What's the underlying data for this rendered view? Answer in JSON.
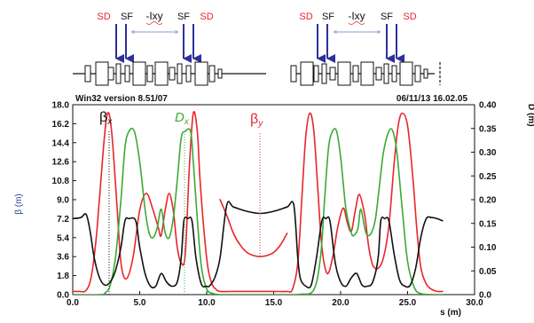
{
  "header": {
    "version": "Win32 version 8.51/07",
    "datetime": "06/11/13  16.02.05"
  },
  "colors": {
    "beta_x": "#e8252c",
    "beta_y": "#e8252c",
    "dispersion": "#3aaa35",
    "black_curve": "#111111",
    "annotation_red": "#e8252c",
    "arrow_blue": "#2c2f9c",
    "axis_label_blue": "#1f3d9a"
  },
  "lattice_labels": {
    "left": {
      "sd1": "SD",
      "sf1": "SF",
      "ixy": "-Ixy",
      "sf2": "SF",
      "sd2": "SD"
    },
    "right": {
      "sd1": "SD",
      "sf1": "SF",
      "ixy": "-Ixy",
      "sf2": "SF",
      "sd2": "SD"
    }
  },
  "chart_data": {
    "type": "line",
    "xlabel": "s (m)",
    "ylabel_left": "β (m)",
    "ylabel_right": "D (m)",
    "xlim": [
      0,
      30
    ],
    "ylim_left": [
      0,
      18
    ],
    "ylim_right": [
      0,
      0.4
    ],
    "x_ticks": [
      "0.0",
      "5.0",
      "10.0",
      "15.0",
      "20.0",
      "25.0",
      "30.0"
    ],
    "y_left_ticks": [
      "0.0",
      "1.8",
      "3.6",
      "5.4",
      "7.2",
      "9.0",
      "10.8",
      "12.6",
      "14.4",
      "16.2",
      "18.0"
    ],
    "y_right_ticks": [
      "0.0",
      "0.05",
      "0.10",
      "0.15",
      "0.20",
      "0.25",
      "0.30",
      "0.35",
      "0.40"
    ],
    "annotations": {
      "beta_x": "βx",
      "dispersion": "Dx",
      "beta_y": "βy"
    },
    "series": [
      {
        "key": "beta_x",
        "axis": "left",
        "x": [
          0.0,
          0.5,
          1.0,
          1.4,
          1.8,
          2.3,
          2.6,
          2.9,
          3.3,
          3.6,
          4.0,
          4.5,
          5.0,
          5.5,
          6.0,
          6.4,
          6.6,
          6.9,
          7.2,
          7.5,
          7.8,
          8.1,
          8.4,
          8.7,
          9.0,
          9.3,
          9.5,
          9.8,
          10.1,
          10.4,
          10.7,
          11.0,
          12.0,
          13.0,
          14.0,
          15.0,
          16.0,
          16.4,
          16.8,
          17.1,
          17.4,
          17.7,
          18.0,
          18.3,
          18.6,
          19.0,
          19.4,
          19.8,
          20.2,
          20.5,
          20.8,
          21.1,
          21.4,
          21.8,
          22.1,
          22.4,
          22.8,
          23.2,
          23.6,
          24.0,
          24.3,
          24.6,
          25.0,
          25.4,
          25.7,
          26.0,
          26.4,
          26.8,
          27.2,
          27.6
        ],
        "y": [
          0.3,
          0.3,
          0.4,
          1.8,
          6.0,
          14.0,
          17.2,
          15.5,
          8.5,
          3.0,
          1.5,
          3.5,
          8.0,
          9.6,
          8.0,
          6.3,
          5.6,
          8.0,
          9.6,
          8.0,
          4.5,
          3.0,
          3.8,
          12.0,
          17.2,
          15.5,
          11.0,
          6.0,
          2.5,
          1.0,
          0.5,
          0.3,
          0.3,
          0.3,
          0.3,
          0.3,
          0.3,
          0.5,
          3.0,
          9.0,
          15.0,
          17.2,
          15.5,
          10.0,
          4.5,
          2.0,
          3.5,
          6.5,
          8.2,
          6.8,
          6.0,
          8.0,
          9.5,
          7.5,
          4.5,
          2.8,
          2.5,
          3.5,
          6.5,
          12.5,
          16.0,
          17.2,
          16.0,
          11.0,
          6.0,
          2.5,
          1.0,
          0.5,
          0.3,
          0.3
        ]
      },
      {
        "key": "beta_y",
        "axis": "left",
        "x": [
          16.0,
          15.5,
          15.0,
          14.5,
          14.0,
          13.5,
          13.0,
          12.5,
          12.0,
          11.5,
          11.0
        ],
        "y": [
          5.8,
          4.7,
          4.0,
          3.7,
          3.6,
          3.7,
          4.0,
          4.7,
          5.8,
          7.5,
          9.0
        ]
      },
      {
        "key": "dispersion",
        "axis": "right",
        "x": [
          0.0,
          2.0,
          2.4,
          2.8,
          3.2,
          3.6,
          3.9,
          4.2,
          4.6,
          5.0,
          5.4,
          5.7,
          6.0,
          6.3,
          6.6,
          6.9,
          7.2,
          7.5,
          7.8,
          8.1,
          8.4,
          8.8,
          9.0,
          9.3,
          9.6,
          10.0,
          10.5,
          11.0,
          12.0,
          13.0,
          14.0,
          15.0,
          16.0,
          17.0,
          18.0,
          18.5,
          18.8,
          19.1,
          19.4,
          19.7,
          20.0,
          20.4,
          20.8,
          21.0,
          21.3,
          21.5,
          21.8,
          22.0,
          22.3,
          22.6,
          22.9,
          23.2,
          23.6,
          23.9,
          24.2,
          24.6,
          25.0,
          25.5,
          26.0,
          27.0,
          27.6
        ],
        "y": [
          0.0,
          0.0,
          0.003,
          0.02,
          0.08,
          0.2,
          0.31,
          0.344,
          0.344,
          0.28,
          0.18,
          0.13,
          0.12,
          0.14,
          0.18,
          0.13,
          0.12,
          0.16,
          0.24,
          0.33,
          0.344,
          0.344,
          0.28,
          0.16,
          0.06,
          0.012,
          0.002,
          0.0,
          0.0,
          0.0,
          0.0,
          0.0,
          0.0,
          0.001,
          0.01,
          0.08,
          0.2,
          0.31,
          0.344,
          0.344,
          0.29,
          0.18,
          0.13,
          0.125,
          0.14,
          0.18,
          0.14,
          0.125,
          0.13,
          0.16,
          0.23,
          0.3,
          0.344,
          0.344,
          0.3,
          0.18,
          0.07,
          0.015,
          0.002,
          0.0,
          0.0
        ]
      },
      {
        "key": "black_curve",
        "axis": "left",
        "x": [
          0.0,
          0.6,
          1.0,
          1.3,
          1.6,
          2.0,
          2.4,
          2.8,
          3.2,
          3.6,
          3.9,
          4.2,
          4.7,
          5.0,
          5.4,
          5.8,
          6.2,
          6.6,
          7.0,
          7.4,
          7.8,
          8.1,
          8.3,
          8.6,
          8.9,
          9.2,
          9.6,
          10.0,
          10.2,
          10.6,
          11.0,
          11.5,
          12.0,
          13.0,
          14.0,
          15.0,
          16.0,
          16.5,
          16.8,
          17.0,
          17.4,
          17.8,
          18.2,
          18.6,
          18.9,
          19.2,
          19.6,
          20.0,
          20.4,
          20.8,
          21.2,
          21.6,
          22.0,
          22.4,
          22.8,
          23.0,
          23.3,
          23.6,
          24.0,
          24.4,
          24.8,
          25.2,
          25.6,
          26.0,
          26.4,
          26.8,
          27.2,
          27.6
        ],
        "y": [
          7.2,
          7.3,
          7.6,
          6.0,
          3.5,
          1.6,
          0.9,
          1.2,
          2.3,
          4.5,
          7.0,
          7.2,
          7.0,
          4.5,
          2.0,
          0.8,
          0.8,
          2.0,
          1.2,
          0.8,
          1.2,
          3.5,
          7.0,
          7.2,
          7.0,
          3.5,
          1.0,
          0.8,
          0.8,
          1.6,
          3.5,
          8.5,
          8.3,
          7.9,
          7.7,
          7.9,
          8.3,
          8.5,
          3.5,
          1.5,
          0.8,
          0.9,
          3.5,
          7.0,
          7.2,
          7.0,
          3.0,
          1.2,
          0.8,
          1.6,
          2.0,
          0.9,
          0.8,
          1.2,
          3.5,
          7.0,
          7.2,
          7.0,
          3.8,
          1.4,
          0.8,
          0.9,
          2.5,
          5.5,
          7.2,
          7.3,
          7.2,
          7.0
        ]
      }
    ]
  }
}
